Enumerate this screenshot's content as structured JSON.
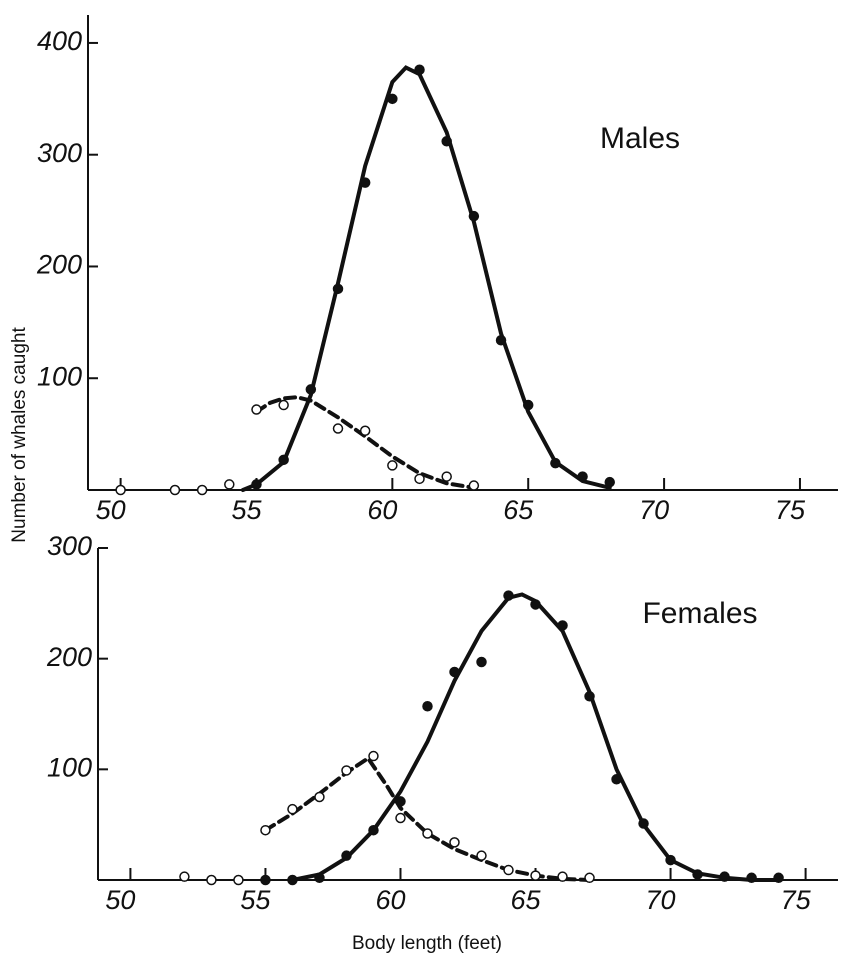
{
  "chart_data": [
    {
      "type": "scatter",
      "title": "Males",
      "ylabel": "Number of whales caught",
      "xlim": [
        48.8,
        76.4
      ],
      "ylim": [
        0,
        425
      ],
      "xticks": [
        50,
        55,
        60,
        65,
        70,
        75
      ],
      "yticks": [
        100,
        200,
        300,
        400
      ],
      "series": [
        {
          "style": "dot-filled",
          "color": "#111111",
          "x": [
            55,
            56,
            57,
            58,
            59,
            60,
            61,
            62,
            63,
            64,
            65,
            66,
            67,
            68
          ],
          "values": [
            5,
            27,
            90,
            180,
            275,
            350,
            376,
            312,
            245,
            134,
            76,
            24,
            12,
            7
          ]
        },
        {
          "style": "dot-open",
          "color": "#111111",
          "x": [
            50,
            52,
            53,
            54,
            55,
            56,
            58,
            59,
            60,
            61,
            62,
            63
          ],
          "values": [
            0,
            0,
            0,
            5,
            72,
            76,
            55,
            53,
            22,
            10,
            12,
            4
          ]
        },
        {
          "style": "line-solid",
          "color": "#111111",
          "x": [
            54.5,
            55,
            56,
            57,
            58,
            59,
            60,
            60.5,
            61,
            62,
            63,
            64,
            65,
            66,
            67,
            68
          ],
          "values": [
            0,
            5,
            25,
            85,
            185,
            290,
            365,
            378,
            372,
            320,
            240,
            140,
            70,
            25,
            8,
            2
          ]
        },
        {
          "style": "line-dashed",
          "color": "#111111",
          "x": [
            55,
            55.5,
            56,
            56.5,
            57,
            58,
            59,
            60,
            61,
            62,
            63
          ],
          "values": [
            70,
            78,
            82,
            83,
            80,
            65,
            48,
            30,
            15,
            6,
            2
          ]
        }
      ]
    },
    {
      "type": "scatter",
      "title": "Females",
      "xlabel": "Body length (feet)",
      "xlim": [
        48.8,
        76.2
      ],
      "ylim": [
        0,
        300
      ],
      "xticks": [
        50,
        55,
        60,
        65,
        70,
        75
      ],
      "yticks": [
        100,
        200,
        300
      ],
      "series": [
        {
          "style": "dot-filled",
          "color": "#111111",
          "x": [
            55,
            56,
            57,
            58,
            59,
            60,
            61,
            62,
            63,
            64,
            65,
            66,
            67,
            68,
            69,
            70,
            71,
            72,
            73,
            74
          ],
          "values": [
            0,
            0,
            2,
            22,
            45,
            71,
            157,
            188,
            197,
            257,
            249,
            230,
            166,
            91,
            51,
            18,
            5,
            3,
            2,
            2
          ]
        },
        {
          "style": "dot-open",
          "color": "#111111",
          "x": [
            52,
            53,
            54,
            55,
            56,
            57,
            58,
            59,
            60,
            61,
            62,
            63,
            64,
            65,
            66,
            67
          ],
          "values": [
            3,
            0,
            0,
            45,
            64,
            75,
            99,
            112,
            56,
            42,
            34,
            22,
            9,
            4,
            3,
            2
          ]
        },
        {
          "style": "line-solid",
          "color": "#111111",
          "x": [
            56,
            57,
            58,
            59,
            60,
            61,
            62,
            63,
            64,
            64.5,
            65,
            66,
            67,
            68,
            69,
            70,
            71,
            72,
            73,
            74
          ],
          "values": [
            0,
            5,
            20,
            45,
            80,
            125,
            180,
            225,
            255,
            258,
            252,
            225,
            170,
            100,
            50,
            18,
            6,
            2,
            0,
            0
          ]
        },
        {
          "style": "line-dashed",
          "color": "#111111",
          "x": [
            55,
            56,
            57,
            58,
            58.8,
            59.5,
            60,
            61,
            62,
            63,
            64,
            65,
            66,
            67
          ],
          "values": [
            45,
            60,
            78,
            97,
            110,
            85,
            65,
            42,
            28,
            18,
            9,
            4,
            1,
            0
          ]
        }
      ]
    }
  ]
}
